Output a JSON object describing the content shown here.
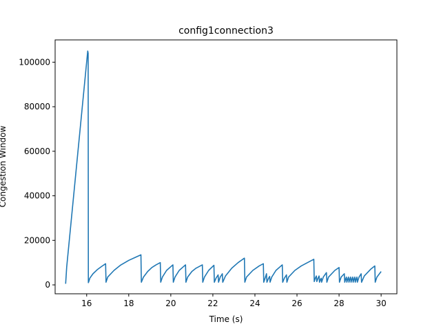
{
  "chart_data": {
    "type": "line",
    "title": "config1connection3",
    "xlabel": "Time (s)",
    "ylabel": "Congestion Window",
    "xlim": [
      14.5,
      30.75
    ],
    "ylim": [
      -4000,
      110000
    ],
    "xticks": [
      16,
      18,
      20,
      22,
      24,
      26,
      28,
      30
    ],
    "yticks": [
      0,
      20000,
      40000,
      60000,
      80000,
      100000
    ],
    "grid": false,
    "legend": "none",
    "line_color": "#1f77b4",
    "series": [
      {
        "x": [
          15.0,
          15.05,
          16.05,
          16.07,
          16.08,
          16.1,
          16.15,
          16.3,
          16.5,
          16.7,
          16.9,
          16.92,
          17.0,
          17.3,
          17.6,
          18.0,
          18.3,
          18.58,
          18.6,
          18.7,
          18.9,
          19.1,
          19.3,
          19.5,
          19.52,
          19.6,
          19.8,
          20.1,
          20.12,
          20.2,
          20.4,
          20.7,
          20.72,
          20.8,
          21.0,
          21.2,
          21.5,
          21.52,
          21.6,
          21.8,
          22.05,
          22.07,
          22.15,
          22.25,
          22.27,
          22.35,
          22.45,
          22.47,
          22.6,
          22.9,
          23.2,
          23.5,
          23.52,
          23.6,
          23.9,
          24.2,
          24.4,
          24.42,
          24.5,
          24.55,
          24.57,
          24.65,
          24.7,
          24.72,
          24.8,
          25.0,
          25.3,
          25.32,
          25.4,
          25.5,
          25.52,
          25.6,
          25.9,
          26.2,
          26.5,
          26.8,
          26.82,
          26.87,
          26.92,
          26.94,
          27.0,
          27.05,
          27.07,
          27.12,
          27.15,
          27.17,
          27.25,
          27.4,
          27.42,
          27.5,
          27.8,
          28.0,
          28.02,
          28.1,
          28.25,
          28.27,
          28.32,
          28.35,
          28.37,
          28.42,
          28.45,
          28.47,
          28.52,
          28.55,
          28.57,
          28.62,
          28.65,
          28.67,
          28.72,
          28.75,
          28.77,
          28.82,
          28.85,
          28.87,
          28.95,
          29.05,
          29.07,
          29.2,
          29.5,
          29.7,
          29.72,
          29.8,
          30.0
        ],
        "y": [
          500,
          8000,
          105000,
          104000,
          1000,
          1500,
          3000,
          5000,
          6800,
          8200,
          9500,
          1200,
          3500,
          6500,
          8800,
          11000,
          12300,
          13500,
          1200,
          3500,
          6000,
          7800,
          9000,
          10000,
          1200,
          3500,
          6500,
          9000,
          1200,
          3500,
          6500,
          9000,
          1200,
          3500,
          6000,
          7500,
          9000,
          1200,
          3500,
          6500,
          8800,
          1200,
          3000,
          4500,
          1200,
          3500,
          5000,
          1200,
          4000,
          7500,
          10000,
          12000,
          1200,
          3500,
          6500,
          8500,
          9500,
          1200,
          3500,
          5000,
          1200,
          3000,
          3800,
          1200,
          3500,
          6500,
          9000,
          1200,
          3000,
          4500,
          1200,
          3500,
          6500,
          8500,
          10000,
          11500,
          1500,
          3000,
          4000,
          1500,
          3000,
          4000,
          1200,
          2500,
          3000,
          1200,
          3500,
          5500,
          1200,
          3500,
          6500,
          7800,
          1200,
          3500,
          5000,
          1200,
          2800,
          3500,
          1200,
          2800,
          3500,
          1200,
          2800,
          3500,
          1200,
          2800,
          3500,
          1200,
          2800,
          3500,
          1200,
          2800,
          3500,
          1200,
          3500,
          5000,
          1200,
          4000,
          7000,
          8500,
          1200,
          3500,
          6000
        ]
      }
    ]
  }
}
